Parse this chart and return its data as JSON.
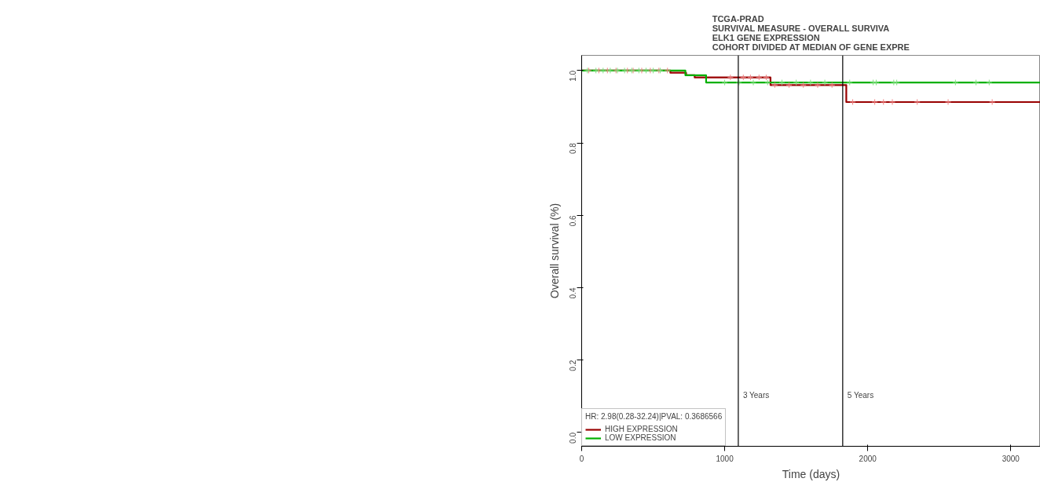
{
  "chart_data": {
    "type": "step",
    "title": "TCGA-PRAD\nSURVIVAL MEASURE -  OVERALL SURVIVA\nELK1  GENE EXPRESSION\nCOHORT DIVIDED AT MEDIAN OF GENE EXPRE",
    "xlabel": "Time (days)",
    "ylabel": "Overall survival (%)",
    "legend_title": "HR: 2.98(0.28-32.24)|PVAL: 0.3686566",
    "xlim": [
      0,
      3207
    ],
    "ylim": [
      -0.038,
      1.042
    ],
    "xticks": [
      0,
      1000,
      2000,
      3000
    ],
    "yticks": [
      {
        "value": 0,
        "label": "0.0"
      },
      {
        "value": 0.2,
        "label": "0.2"
      },
      {
        "value": 0.4,
        "label": "0.4"
      },
      {
        "value": 0.6,
        "label": "0.6"
      },
      {
        "value": 0.8,
        "label": "0.8"
      },
      {
        "value": 1,
        "label": "1.0"
      }
    ],
    "grid": false,
    "legend": "bottom left",
    "line_style": "solid",
    "ref_lines": [
      {
        "axis": "x",
        "value": 1095,
        "label": "3 Years",
        "color": "#000000"
      },
      {
        "axis": "x",
        "value": 1825,
        "label": "5 Years",
        "color": "#000000"
      }
    ],
    "series": [
      {
        "name": "HIGH EXPRESSION",
        "color": "#990000",
        "x": [
          0,
          620,
          730,
          790,
          1320,
          1850,
          3207
        ],
        "values": [
          1.0,
          0.994,
          0.987,
          0.981,
          0.96,
          0.913,
          0.913
        ]
      },
      {
        "name": "LOW EXPRESSION",
        "color": "#00b000",
        "x": [
          0,
          725,
          870,
          3207
        ],
        "values": [
          1.0,
          0.987,
          0.967,
          0.967
        ]
      },
      {
        "type": "scatter",
        "marker": "cross",
        "color": "#f08080",
        "x": [
          50,
          120,
          180,
          240,
          320,
          360,
          420,
          480,
          540,
          600,
          1040,
          1130,
          1180,
          1240,
          1290,
          1350,
          1450,
          1550,
          1650,
          1750,
          1895,
          2049,
          2110,
          2172,
          2346,
          2562,
          2870
        ],
        "values": [
          1,
          1,
          1,
          1,
          1,
          1,
          1,
          1,
          1,
          1,
          0.981,
          0.981,
          0.981,
          0.981,
          0.981,
          0.96,
          0.96,
          0.96,
          0.96,
          0.96,
          0.913,
          0.913,
          0.913,
          0.913,
          0.913,
          0.913,
          0.913
        ]
      },
      {
        "type": "scatter",
        "marker": "cross",
        "color": "#80e080",
        "x": [
          40,
          100,
          150,
          200,
          250,
          300,
          350,
          400,
          450,
          500,
          550,
          1000,
          1100,
          1200,
          1300,
          1400,
          1500,
          1600,
          1700,
          1874,
          2038,
          2059,
          2182,
          2203,
          2613,
          2757,
          2849
        ],
        "values": [
          1,
          1,
          1,
          1,
          1,
          1,
          1,
          1,
          1,
          1,
          1,
          0.967,
          0.967,
          0.967,
          0.967,
          0.967,
          0.967,
          0.967,
          0.967,
          0.967,
          0.967,
          0.967,
          0.967,
          0.967,
          0.967,
          0.967,
          0.967
        ]
      }
    ]
  }
}
